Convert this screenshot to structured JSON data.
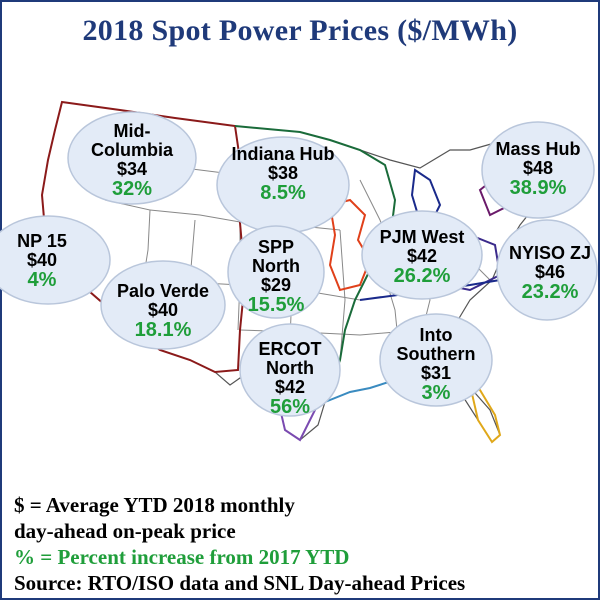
{
  "title": "2018 Spot Power Prices ($/MWh)",
  "colors": {
    "title": "#1f3a7a",
    "percent": "#1f9e3a",
    "bubble_fill": "#e3ebf7",
    "bubble_stroke": "#b9c6db"
  },
  "hubs": [
    {
      "name": "Mid-Columbia",
      "price": "$34",
      "change": "32%"
    },
    {
      "name": "Indiana Hub",
      "price": "$38",
      "change": "8.5%"
    },
    {
      "name": "Mass Hub",
      "price": "$48",
      "change": "38.9%"
    },
    {
      "name": "NP 15",
      "price": "$40",
      "change": "4%"
    },
    {
      "name": "SPP North",
      "price": "$29",
      "change": "15.5%"
    },
    {
      "name": "PJM West",
      "price": "$42",
      "change": "26.2%"
    },
    {
      "name": "NYISO ZJ",
      "price": "$46",
      "change": "23.2%"
    },
    {
      "name": "Palo Verde",
      "price": "$40",
      "change": "18.1%"
    },
    {
      "name": "ERCOT North",
      "price": "$42",
      "change": "56%"
    },
    {
      "name": "Into Southern",
      "price": "$31",
      "change": "3%"
    }
  ],
  "legend": {
    "line1": "$ = Average YTD 2018 monthly",
    "line2": "day-ahead on-peak price",
    "line3": "% = Percent increase from 2017 YTD",
    "line4": "Source: RTO/ISO data and SNL Day-ahead Prices"
  }
}
